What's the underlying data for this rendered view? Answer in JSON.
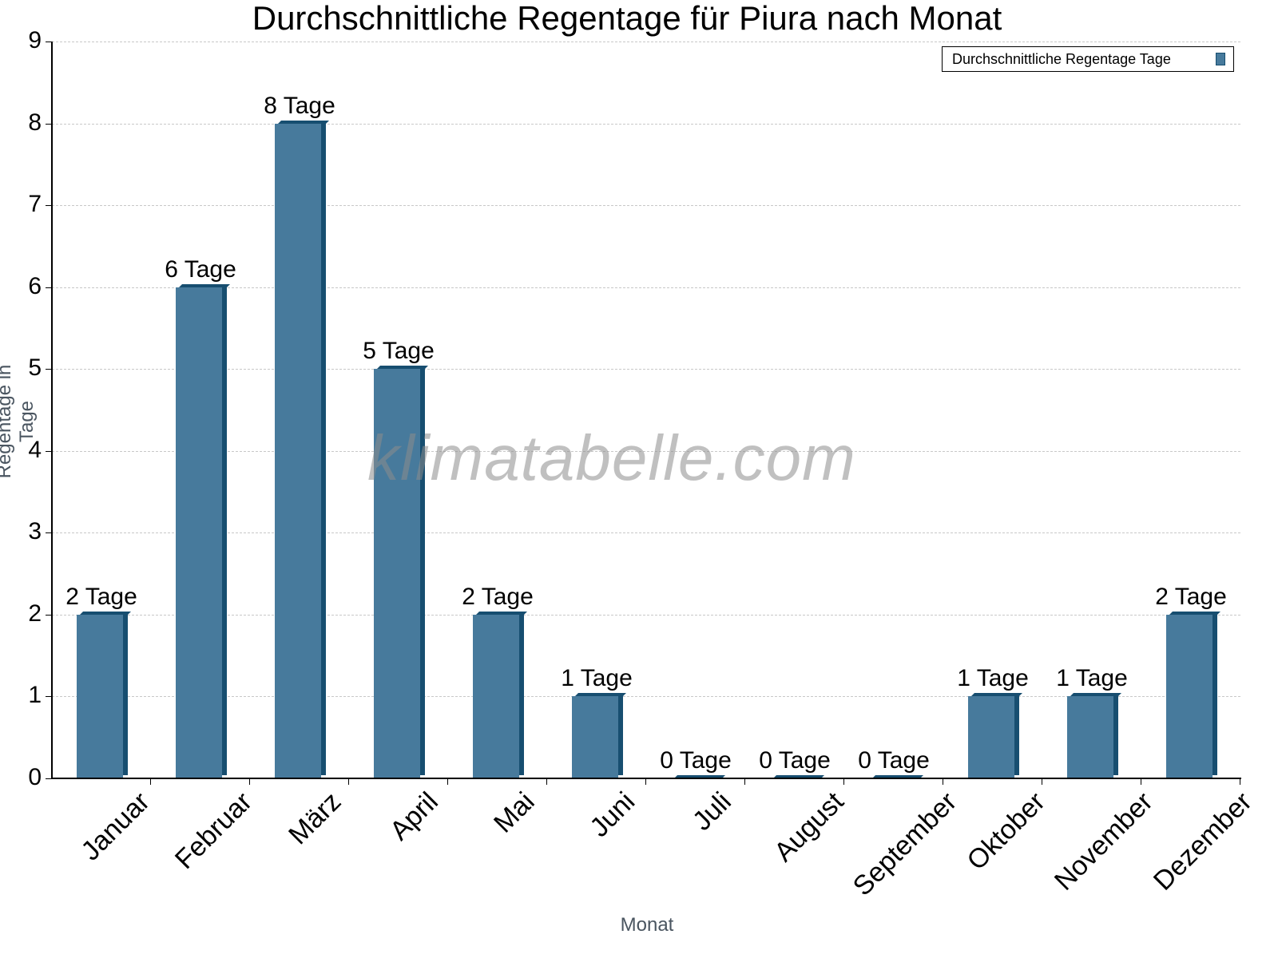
{
  "chart_data": {
    "type": "bar",
    "title": "Durchschnittliche Regentage für Piura nach Monat",
    "xlabel": "Monat",
    "ylabel": "Regentage in Tage",
    "ylim": [
      0,
      9
    ],
    "yticks": [
      "0",
      "1",
      "2",
      "3",
      "4",
      "5",
      "6",
      "7",
      "8",
      "9"
    ],
    "grid": true,
    "legend_position": "top-right",
    "categories": [
      "Januar",
      "Februar",
      "März",
      "April",
      "Mai",
      "Juni",
      "Juli",
      "August",
      "September",
      "Oktober",
      "November",
      "Dezember"
    ],
    "series": [
      {
        "name": "Durchschnittliche Regentage Tage",
        "color": "#477a9c",
        "values": [
          2,
          6,
          8,
          5,
          2,
          1,
          0,
          0,
          0,
          1,
          1,
          2
        ],
        "labels": [
          "2 Tage",
          "6 Tage",
          "8 Tage",
          "5 Tage",
          "2 Tage",
          "1 Tage",
          "0 Tage",
          "0 Tage",
          "0 Tage",
          "1 Tage",
          "1 Tage",
          "2 Tage"
        ]
      }
    ]
  },
  "watermark": "klimatabelle.com"
}
